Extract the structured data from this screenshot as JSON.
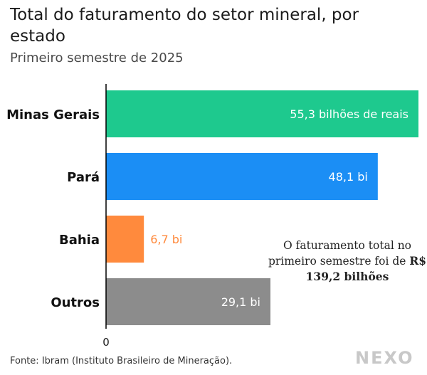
{
  "header": {
    "title": "Total do faturamento do setor mineral, por estado",
    "subtitle": "Primeiro semestre de 2025"
  },
  "note": {
    "text_before": "O faturamento total no primeiro semestre foi de ",
    "highlight": "R$ 139,2 bilhões"
  },
  "footer": {
    "source": "Fonte: Ibram (Instituto Brasileiro de Mineração).",
    "logo": "NEXO"
  },
  "colors": {
    "minas_gerais": "#1ec98e",
    "para": "#1b8ef5",
    "bahia": "#ff8a3d",
    "outros": "#8c8c8c",
    "axis": "#000000"
  },
  "chart_data": {
    "type": "bar",
    "orientation": "horizontal",
    "title": "Total do faturamento do setor mineral, por estado",
    "subtitle": "Primeiro semestre de 2025",
    "categories": [
      "Minas Gerais",
      "Pará",
      "Bahia",
      "Outros"
    ],
    "values": [
      55.3,
      48.1,
      6.7,
      29.1
    ],
    "data_labels": [
      "55,3 bilhões de reais",
      "48,1 bi",
      "6,7 bi",
      "29,1 bi"
    ],
    "bar_colors": [
      "#1ec98e",
      "#1b8ef5",
      "#ff8a3d",
      "#8c8c8c"
    ],
    "label_colors": [
      "#ffffff",
      "#ffffff",
      "#ff8a3d",
      "#ffffff"
    ],
    "xlim": [
      0,
      55.3
    ],
    "x_tick_labels": [
      "0"
    ],
    "grid": false,
    "unit": "bilhões de reais"
  }
}
